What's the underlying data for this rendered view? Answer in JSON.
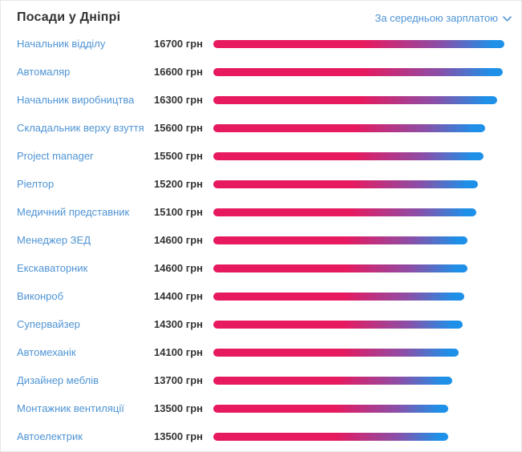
{
  "header": {
    "title": "Посади у Дніпрі",
    "sort_label": "За середньою зарплатою"
  },
  "colors": {
    "link": "#4f94d4",
    "title": "#333333",
    "value": "#333333",
    "border": "#e7e7e7",
    "bar_gradient_start": "#e7195f",
    "bar_gradient_mid": "#8a4fa8",
    "bar_gradient_end": "#1e90e8"
  },
  "chart_data": {
    "type": "bar",
    "orientation": "horizontal",
    "title": "Посади у Дніпрі",
    "sort_control": "За середньою зарплатою",
    "unit": "грн",
    "xlim": [
      0,
      16700
    ],
    "grid": false,
    "legend": false,
    "categories": [
      "Начальник відділу",
      "Автомаляр",
      "Начальник виробництва",
      "Складальник верху взуття",
      "Project manager",
      "Ріелтор",
      "Медичний представник",
      "Менеджер ЗЕД",
      "Екскаваторник",
      "Виконроб",
      "Супервайзер",
      "Автомеханік",
      "Дизайнер меблів",
      "Монтажник вентиляції",
      "Автоелектрик"
    ],
    "values": [
      16700,
      16600,
      16300,
      15600,
      15500,
      15200,
      15100,
      14600,
      14600,
      14400,
      14300,
      14100,
      13700,
      13500,
      13500
    ]
  }
}
